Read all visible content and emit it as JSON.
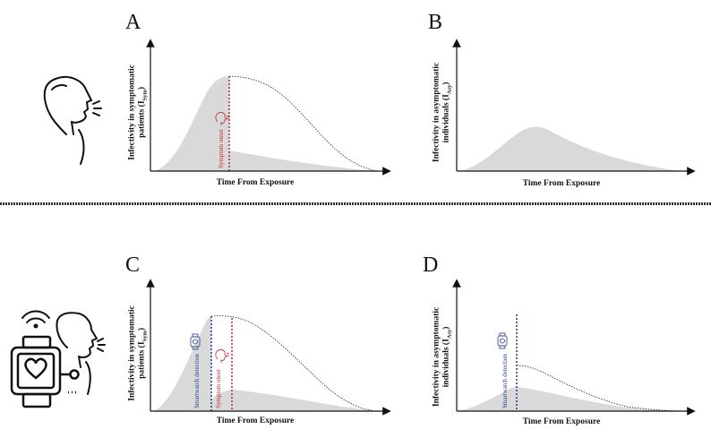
{
  "panels": {
    "A": {
      "letter": "A",
      "ylabel_line1": "Infectivity in symptomatic",
      "ylabel_line2": "patients (I",
      "ylabel_sub": "Sym",
      "ylabel_end": ")",
      "xlabel": "Time From Exposure",
      "onset_label": "Symptom onset"
    },
    "B": {
      "letter": "B",
      "ylabel_line1": "Infectivity in asymptomatic",
      "ylabel_line2": "individuals (I",
      "ylabel_sub": "Asy",
      "ylabel_end": ")",
      "xlabel": "Time From Exposure"
    },
    "C": {
      "letter": "C",
      "ylabel_line1": "Infectivity in symptomatic",
      "ylabel_line2": "patients (I",
      "ylabel_sub": "Sym",
      "ylabel_end": ")",
      "xlabel": "Time From Exposure",
      "detect_label": "Smartwatch detection",
      "onset_label": "Symptom onset"
    },
    "D": {
      "letter": "D",
      "ylabel_line1": "Infectivity in asymptomatic",
      "ylabel_line2": "individuals (I",
      "ylabel_sub": "Asy",
      "ylabel_end": ")",
      "xlabel": "Time From Exposure",
      "detect_label": "Smartwatch detection"
    }
  },
  "colors": {
    "symptom_line": "#c0272d",
    "detection_line": "#1f3a93",
    "curve_fill": "#d9d9d9"
  },
  "icons": [
    "coughing-person-icon",
    "smartwatch-icon",
    "wireless-signal-icon",
    "symptom-head-icon",
    "watch-detection-icon"
  ]
}
